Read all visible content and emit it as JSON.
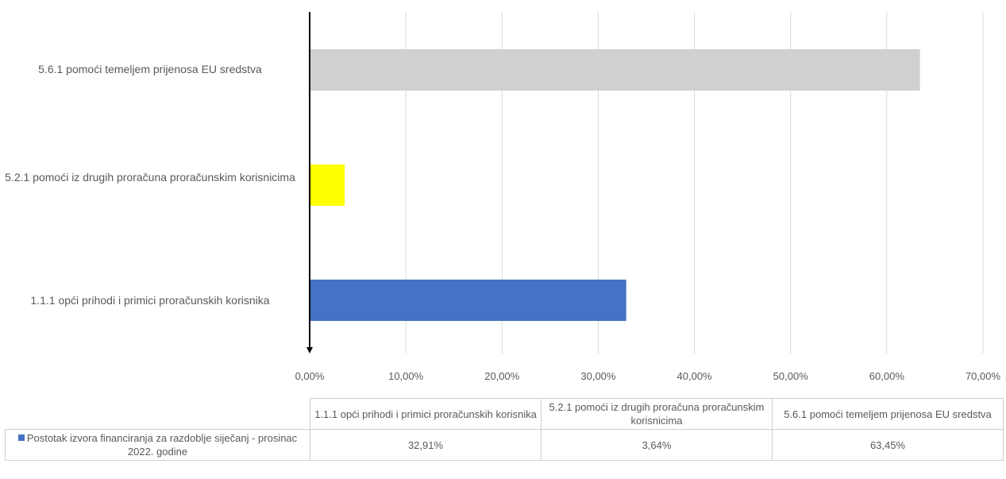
{
  "chart_data": {
    "type": "bar",
    "orientation": "horizontal",
    "categories": [
      "1.1.1 opći prihodi i primici proračunskih korisnika",
      "5.2.1 pomoći iz drugih proračuna proračunskim korisnicima",
      "5.6.1 pomoći temeljem prijenosa EU sredstva"
    ],
    "series": [
      {
        "name": "Postotak izvora financiranja za razdoblje siječanj - prosinac 2022. godine",
        "values": [
          32.91,
          3.64,
          63.45
        ],
        "value_labels": [
          "32,91%",
          "3,64%",
          "63,45%"
        ],
        "colors": [
          "#4472c4",
          "#ffff00",
          "#d0d0d0"
        ]
      }
    ],
    "xlim": [
      0,
      70
    ],
    "x_ticks": [
      0,
      10,
      20,
      30,
      40,
      50,
      60,
      70
    ],
    "x_tick_labels": [
      "0,00%",
      "10,00%",
      "20,00%",
      "30,00%",
      "40,00%",
      "50,00%",
      "60,00%",
      "70,00%"
    ],
    "grid": true,
    "legend_position": "data-table",
    "table_headers": [
      "1.1.1 opći prihodi i primici proračunskih korisnika",
      "5.2.1 pomoći iz drugih proračuna proračunskim korisnicima",
      "5.6.1 pomoći temeljem prijenosa EU sredstva"
    ],
    "legend_color": "#4472c4",
    "title": "",
    "xlabel": "",
    "ylabel": ""
  }
}
